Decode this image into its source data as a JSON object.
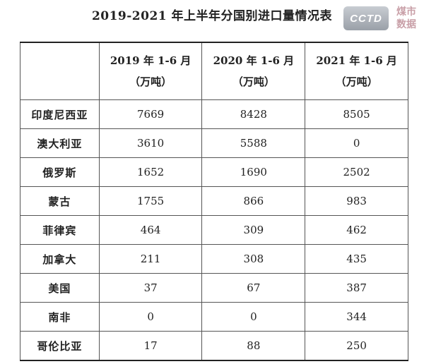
{
  "title": "2019-2021 年上半年分国别进口量情况表",
  "logo": {
    "mark_text": "CCTD",
    "line1": "煤市",
    "line2": "数据"
  },
  "table": {
    "header": {
      "corner": "",
      "columns": [
        {
          "period": "2019 年 1-6 月",
          "unit": "（万吨）"
        },
        {
          "period": "2020 年 1-6 月",
          "unit": "（万吨）"
        },
        {
          "period": "2021 年 1-6 月",
          "unit": "（万吨）"
        }
      ]
    },
    "rows": [
      {
        "country": "印度尼西亚",
        "values": [
          "7669",
          "8428",
          "8505"
        ]
      },
      {
        "country": "澳大利亚",
        "values": [
          "3610",
          "5588",
          "0"
        ]
      },
      {
        "country": "俄罗斯",
        "values": [
          "1652",
          "1690",
          "2502"
        ]
      },
      {
        "country": "蒙古",
        "values": [
          "1755",
          "866",
          "983"
        ]
      },
      {
        "country": "菲律宾",
        "values": [
          "464",
          "309",
          "462"
        ]
      },
      {
        "country": "加拿大",
        "values": [
          "211",
          "308",
          "435"
        ]
      },
      {
        "country": "美国",
        "values": [
          "37",
          "67",
          "387"
        ]
      },
      {
        "country": "南非",
        "values": [
          "0",
          "0",
          "344"
        ]
      },
      {
        "country": "哥伦比亚",
        "values": [
          "17",
          "88",
          "250"
        ]
      }
    ]
  }
}
